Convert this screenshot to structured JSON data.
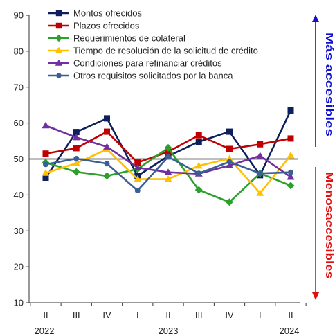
{
  "chart_data": {
    "type": "line",
    "categories": [
      "II",
      "III",
      "IV",
      "I",
      "II",
      "III",
      "IV",
      "I",
      "II"
    ],
    "years": [
      "2022",
      "2023",
      "2024"
    ],
    "ylim": [
      10,
      90
    ],
    "yticks": [
      10,
      20,
      30,
      40,
      50,
      60,
      70,
      80,
      90
    ],
    "reference_line": 50,
    "series": [
      {
        "name": "Montos ofrecidos",
        "color": "#0d1f5c",
        "marker": "square",
        "values": [
          44.8,
          57.5,
          61.3,
          45.3,
          50.8,
          54.8,
          57.6,
          45.5,
          63.5
        ]
      },
      {
        "name": "Plazos ofrecidos",
        "color": "#c00000",
        "marker": "square",
        "values": [
          51.5,
          53.0,
          57.6,
          49.0,
          52.0,
          56.6,
          52.8,
          54.1,
          55.7
        ]
      },
      {
        "name": "Requerimientos de colateral",
        "color": "#2ca02c",
        "marker": "diamond",
        "values": [
          49.0,
          46.4,
          45.3,
          47.2,
          53.1,
          41.4,
          38.0,
          46.0,
          42.6
        ]
      },
      {
        "name": "Tiempo de resolución de la solicitud de crédito",
        "color": "#ffc000",
        "marker": "triangle",
        "values": [
          46.1,
          48.8,
          52.7,
          44.4,
          44.4,
          48.1,
          50.1,
          40.5,
          51.0
        ]
      },
      {
        "name": "Condiciones para refinanciar créditos",
        "color": "#70309f",
        "marker": "triangle",
        "values": [
          59.3,
          56.0,
          53.4,
          47.6,
          46.3,
          45.9,
          48.2,
          50.9,
          45.0
        ]
      },
      {
        "name": "Otros requisitos solicitados por la banca",
        "color": "#3a5f96",
        "marker": "circle",
        "values": [
          48.5,
          50.1,
          48.7,
          41.2,
          50.6,
          46.0,
          49.2,
          46.0,
          46.3
        ]
      }
    ]
  },
  "annotations": {
    "upper": {
      "text": "Más accesibles",
      "color": "#1010d0"
    },
    "lower": {
      "text": "Menosaccesibles",
      "color": "#e01010"
    }
  }
}
